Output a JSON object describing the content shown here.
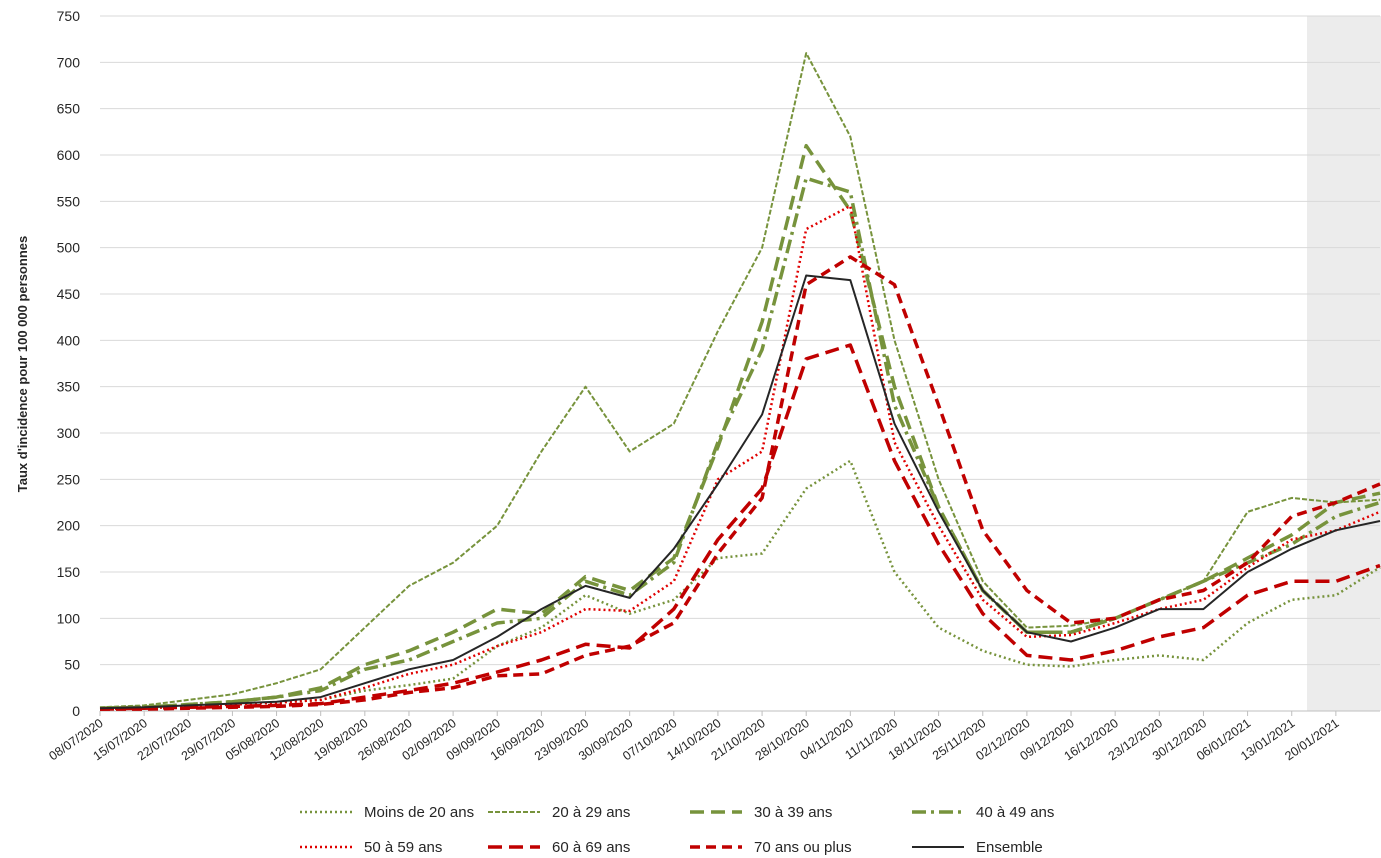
{
  "chart_data": {
    "type": "line",
    "y_label": "Taux d'incidence pour 100 000 personnes",
    "categories": [
      "08/07/2020",
      "15/07/2020",
      "22/07/2020",
      "29/07/2020",
      "05/08/2020",
      "12/08/2020",
      "19/08/2020",
      "26/08/2020",
      "02/09/2020",
      "09/09/2020",
      "16/09/2020",
      "23/09/2020",
      "30/09/2020",
      "07/10/2020",
      "14/10/2020",
      "21/10/2020",
      "28/10/2020",
      "04/11/2020",
      "11/11/2020",
      "18/11/2020",
      "25/11/2020",
      "02/12/2020",
      "09/12/2020",
      "16/12/2020",
      "23/12/2020",
      "30/12/2020",
      "06/01/2021",
      "13/01/2021",
      "20/01/2021",
      null
    ],
    "ylim": [
      0,
      750
    ],
    "yticks": [
      0,
      50,
      100,
      150,
      200,
      250,
      300,
      350,
      400,
      450,
      500,
      550,
      600,
      650,
      700,
      750
    ],
    "grid": true,
    "series": [
      {
        "name": "Moins de 20 ans",
        "color": "#77933c",
        "dash": "dotted",
        "width": 2.5,
        "values": [
          2,
          3,
          5,
          7,
          9,
          12,
          22,
          28,
          35,
          70,
          90,
          125,
          105,
          120,
          165,
          170,
          240,
          270,
          150,
          90,
          65,
          50,
          48,
          55,
          60,
          55,
          95,
          120,
          125,
          155
        ]
      },
      {
        "name": "20 à 29 ans",
        "color": "#77933c",
        "dash": "short-dash",
        "width": 2,
        "values": [
          4,
          6,
          12,
          18,
          30,
          45,
          90,
          135,
          160,
          200,
          280,
          350,
          280,
          310,
          410,
          500,
          710,
          620,
          400,
          250,
          140,
          90,
          92,
          100,
          120,
          140,
          215,
          230,
          225,
          228
        ]
      },
      {
        "name": "30 à 39 ans",
        "color": "#77933c",
        "dash": "long-dash",
        "width": 3.5,
        "values": [
          3,
          4,
          7,
          10,
          15,
          25,
          50,
          65,
          85,
          110,
          105,
          145,
          130,
          165,
          285,
          420,
          610,
          540,
          350,
          220,
          130,
          85,
          85,
          100,
          120,
          140,
          165,
          190,
          225,
          235
        ]
      },
      {
        "name": "40 à 49 ans",
        "color": "#77933c",
        "dash": "dash-dot",
        "width": 3.5,
        "values": [
          3,
          4,
          7,
          10,
          15,
          22,
          45,
          55,
          75,
          95,
          100,
          140,
          125,
          160,
          290,
          390,
          575,
          560,
          330,
          220,
          130,
          85,
          85,
          100,
          120,
          140,
          160,
          180,
          210,
          225
        ]
      },
      {
        "name": "50 à 59 ans",
        "color": "#e00000",
        "dash": "dotted",
        "width": 2.5,
        "values": [
          2,
          3,
          5,
          7,
          9,
          12,
          25,
          40,
          50,
          70,
          85,
          110,
          108,
          140,
          250,
          280,
          520,
          545,
          290,
          200,
          120,
          80,
          82,
          95,
          110,
          120,
          155,
          185,
          195,
          215
        ]
      },
      {
        "name": "60 à 69 ans",
        "color": "#c00000",
        "dash": "long-dash",
        "width": 3.5,
        "values": [
          2,
          3,
          4,
          5,
          6,
          8,
          15,
          22,
          30,
          42,
          55,
          72,
          68,
          110,
          185,
          240,
          380,
          395,
          270,
          180,
          105,
          60,
          55,
          65,
          80,
          90,
          125,
          140,
          140,
          157
        ]
      },
      {
        "name": "70 ans ou plus",
        "color": "#c00000",
        "dash": "medium-dash",
        "width": 3.5,
        "values": [
          2,
          2,
          3,
          4,
          5,
          7,
          12,
          20,
          25,
          38,
          40,
          60,
          70,
          95,
          170,
          230,
          460,
          490,
          460,
          330,
          195,
          130,
          95,
          100,
          120,
          130,
          160,
          210,
          225,
          245
        ]
      },
      {
        "name": "Ensemble",
        "color": "#262626",
        "dash": "solid",
        "width": 2,
        "values": [
          3,
          4,
          6,
          8,
          10,
          15,
          30,
          45,
          55,
          80,
          110,
          135,
          122,
          175,
          245,
          320,
          470,
          465,
          310,
          215,
          130,
          85,
          75,
          90,
          110,
          110,
          150,
          175,
          195,
          205
        ]
      }
    ]
  }
}
